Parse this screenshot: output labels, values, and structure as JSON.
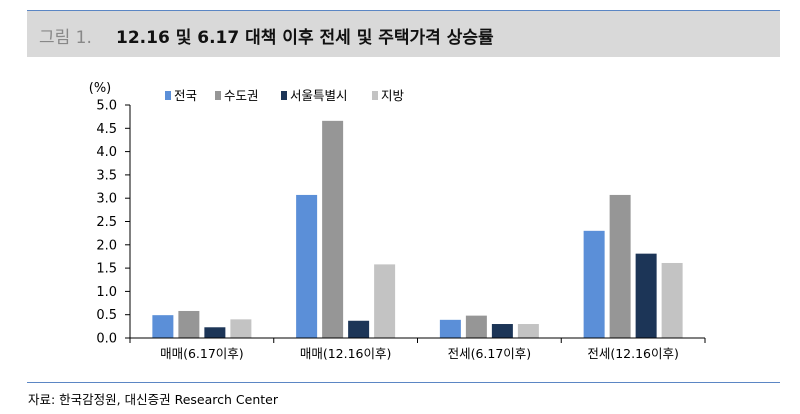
{
  "title": {
    "prefix": "그림 1.",
    "text": "12.16 및 6.17 대책 이후 전세 및 주택가격 상승률"
  },
  "source": "자료: 한국감정원, 대신증권 Research Center",
  "colors": {
    "title_bar": "#d9d9d9",
    "rule": "#5b86c4"
  },
  "chart_data": {
    "type": "bar",
    "ylabel": "(%)",
    "ylim": [
      0,
      5.0
    ],
    "yticks": [
      "0.0",
      "0.5",
      "1.0",
      "1.5",
      "2.0",
      "2.5",
      "3.0",
      "3.5",
      "4.0",
      "4.5",
      "5.0"
    ],
    "categories": [
      "매매(6.17이후)",
      "매매(12.16이후)",
      "전세(6.17이후)",
      "전세(12.16이후)"
    ],
    "series": [
      {
        "name": "전국",
        "color": "#5b8fd8",
        "values": [
          0.49,
          3.07,
          0.39,
          2.3
        ]
      },
      {
        "name": "수도권",
        "color": "#969696",
        "values": [
          0.58,
          4.66,
          0.48,
          3.07
        ]
      },
      {
        "name": "서울특별시",
        "color": "#1c3557",
        "values": [
          0.23,
          0.37,
          0.3,
          1.81
        ]
      },
      {
        "name": "지방",
        "color": "#c3c3c3",
        "values": [
          0.4,
          1.58,
          0.3,
          1.61
        ]
      }
    ],
    "legend_position": "top",
    "grid": false
  }
}
